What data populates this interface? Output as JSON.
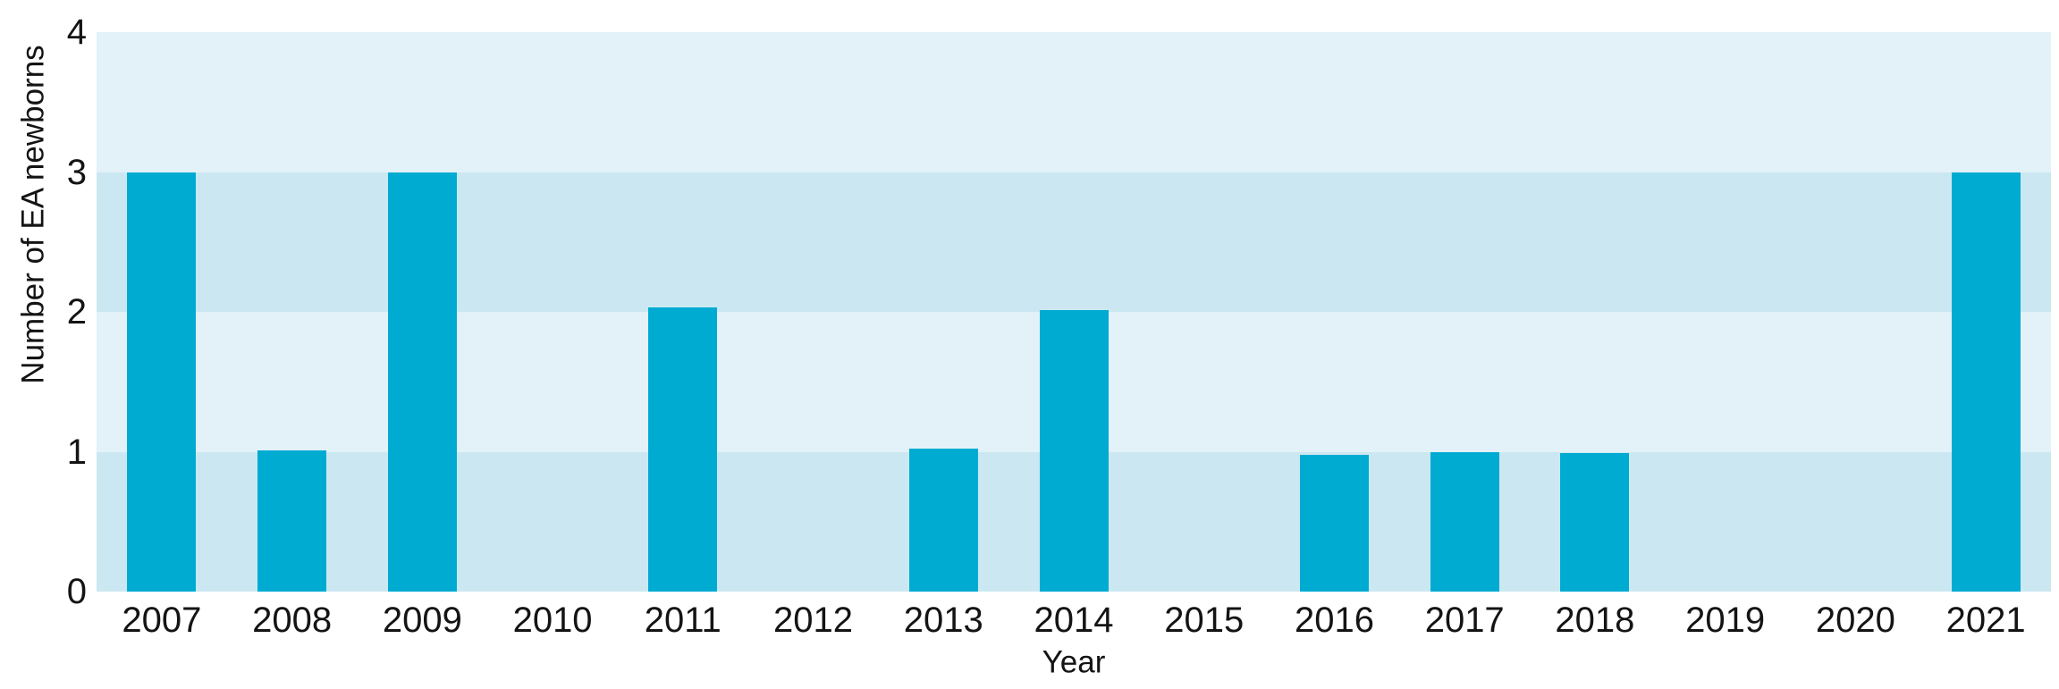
{
  "chart_data": {
    "type": "bar",
    "xlabel": "Year",
    "ylabel": "Number of EA newborns",
    "categories": [
      "2007",
      "2008",
      "2009",
      "2010",
      "2011",
      "2012",
      "2013",
      "2014",
      "2015",
      "2016",
      "2017",
      "2018",
      "2019",
      "2020",
      "2021"
    ],
    "values": [
      3,
      1,
      3,
      0,
      2,
      0,
      1,
      2,
      0,
      1,
      1,
      1,
      0,
      0,
      3
    ],
    "rendered_values": [
      3,
      1.01,
      3,
      0,
      2.03,
      0,
      1.02,
      2.01,
      0,
      0.98,
      1.0,
      0.99,
      0,
      0,
      3
    ],
    "y_ticks": [
      "0",
      "1",
      "2",
      "3",
      "4"
    ],
    "ylim": [
      0,
      4
    ],
    "legend": "none",
    "gridlines": "none",
    "background_bands": "alternating horizontal stripes, one per y-unit (light between 1-2 and 3-4, dark between 0-1 and 2-3)",
    "colors": {
      "bar": "#00ABD2",
      "band_light": "#E3F1F8",
      "band_dark": "#CBE8F2",
      "text": "#141414",
      "background": "#FFFFFF"
    }
  }
}
